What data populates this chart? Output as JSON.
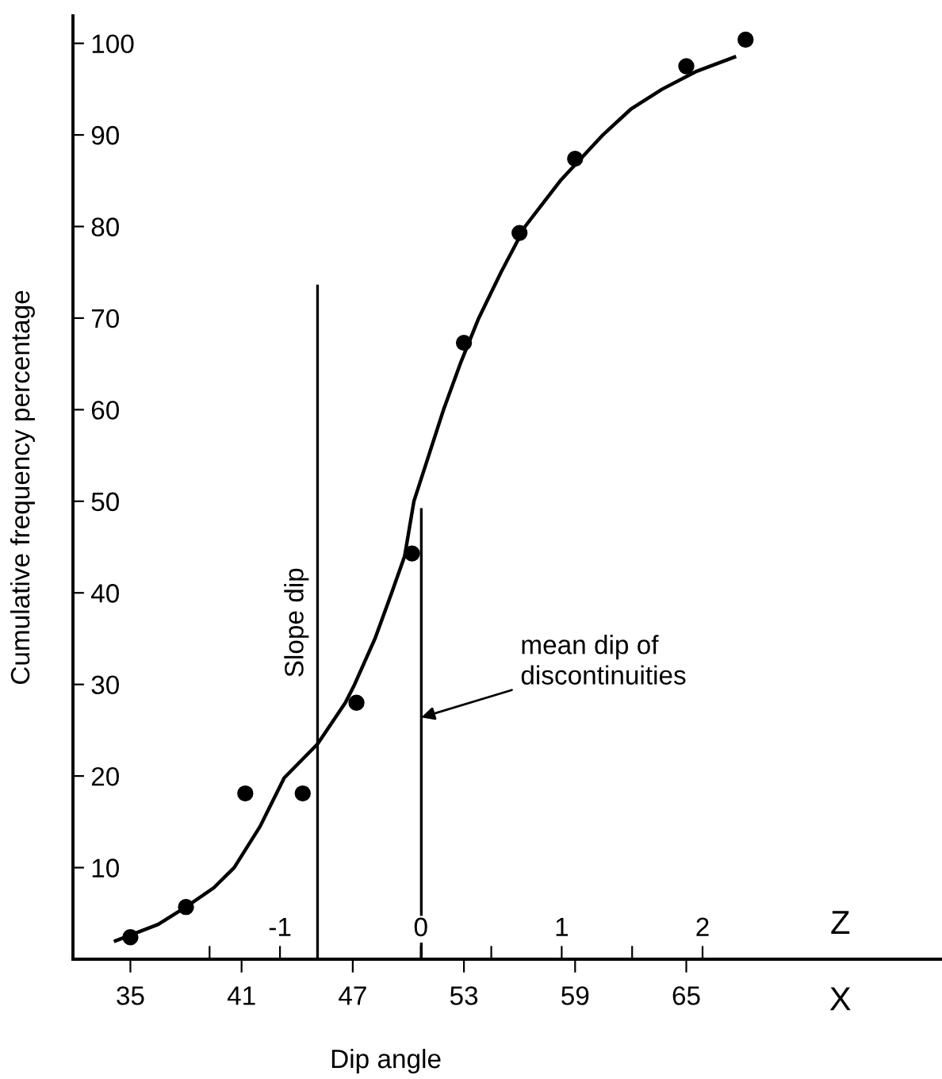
{
  "chart_data": {
    "type": "scatter",
    "xlabel": "Dip angle",
    "x2label": "Z",
    "ylabel": "Cumulative frequency percentage",
    "annotations": [
      "X",
      {
        "text": "mean dip of\ndiscontinuities",
        "x": 50.7,
        "y": 26.4
      }
    ],
    "xlim": [
      31.9,
      78.8
    ],
    "xticks": [
      35,
      41,
      47,
      53,
      59,
      65
    ],
    "x2lim": [
      -2.47,
      3.7
    ],
    "x2ticks": [
      {
        "value": -1.5,
        "label": null
      },
      {
        "value": -1,
        "label": "-1"
      },
      0,
      {
        "value": 0.5,
        "label": null
      },
      1,
      {
        "value": 1.5,
        "label": null
      },
      2
    ],
    "ylim": [
      0,
      103
    ],
    "yticks": [
      10,
      20,
      30,
      40,
      50,
      60,
      70,
      80,
      90,
      100
    ],
    "grid": false,
    "series": [
      {
        "color": "#000000",
        "marker": "circle",
        "x": [
          35,
          38.0,
          41.2,
          44.3,
          47.2,
          50.2,
          53.0,
          56.0,
          59.0,
          65.0,
          68.2
        ],
        "values": [
          2.4,
          5.7,
          18.1,
          18.1,
          28.0,
          44.3,
          67.3,
          79.3,
          87.4,
          97.5,
          100.4
        ]
      },
      {
        "type": "line",
        "color": "#000000",
        "marker": "none",
        "line_style": "solid",
        "x": [
          34.2,
          36.5,
          38.0,
          39.5,
          40.6,
          42.0,
          43.3,
          45.1,
          46.6,
          47.1,
          48.2,
          49.1,
          49.8,
          50.3,
          51.1,
          51.9,
          52.8,
          53.8,
          55.0,
          56.3,
          58.2,
          60.5,
          62.0,
          63.7,
          65.5,
          67.6
        ],
        "values": [
          2.0,
          3.8,
          5.7,
          7.8,
          10.0,
          14.5,
          19.8,
          23.5,
          28.0,
          30.0,
          35.0,
          40.0,
          44.0,
          50.0,
          55.0,
          60.0,
          65.0,
          70.0,
          75.0,
          80.0,
          85.0,
          90.0,
          92.8,
          95.0,
          96.9,
          98.5
        ]
      },
      {
        "type": "line",
        "name": "Slope dip",
        "color": "#000000",
        "marker": "none",
        "line_style": "solid",
        "x": [
          45.1,
          45.1
        ],
        "values": [
          0,
          73.5
        ]
      },
      {
        "type": "line",
        "color": "#000000",
        "marker": "none",
        "line_style": "solid",
        "x": [
          50.7,
          50.7
        ],
        "values": [
          0,
          49.1
        ]
      }
    ]
  }
}
